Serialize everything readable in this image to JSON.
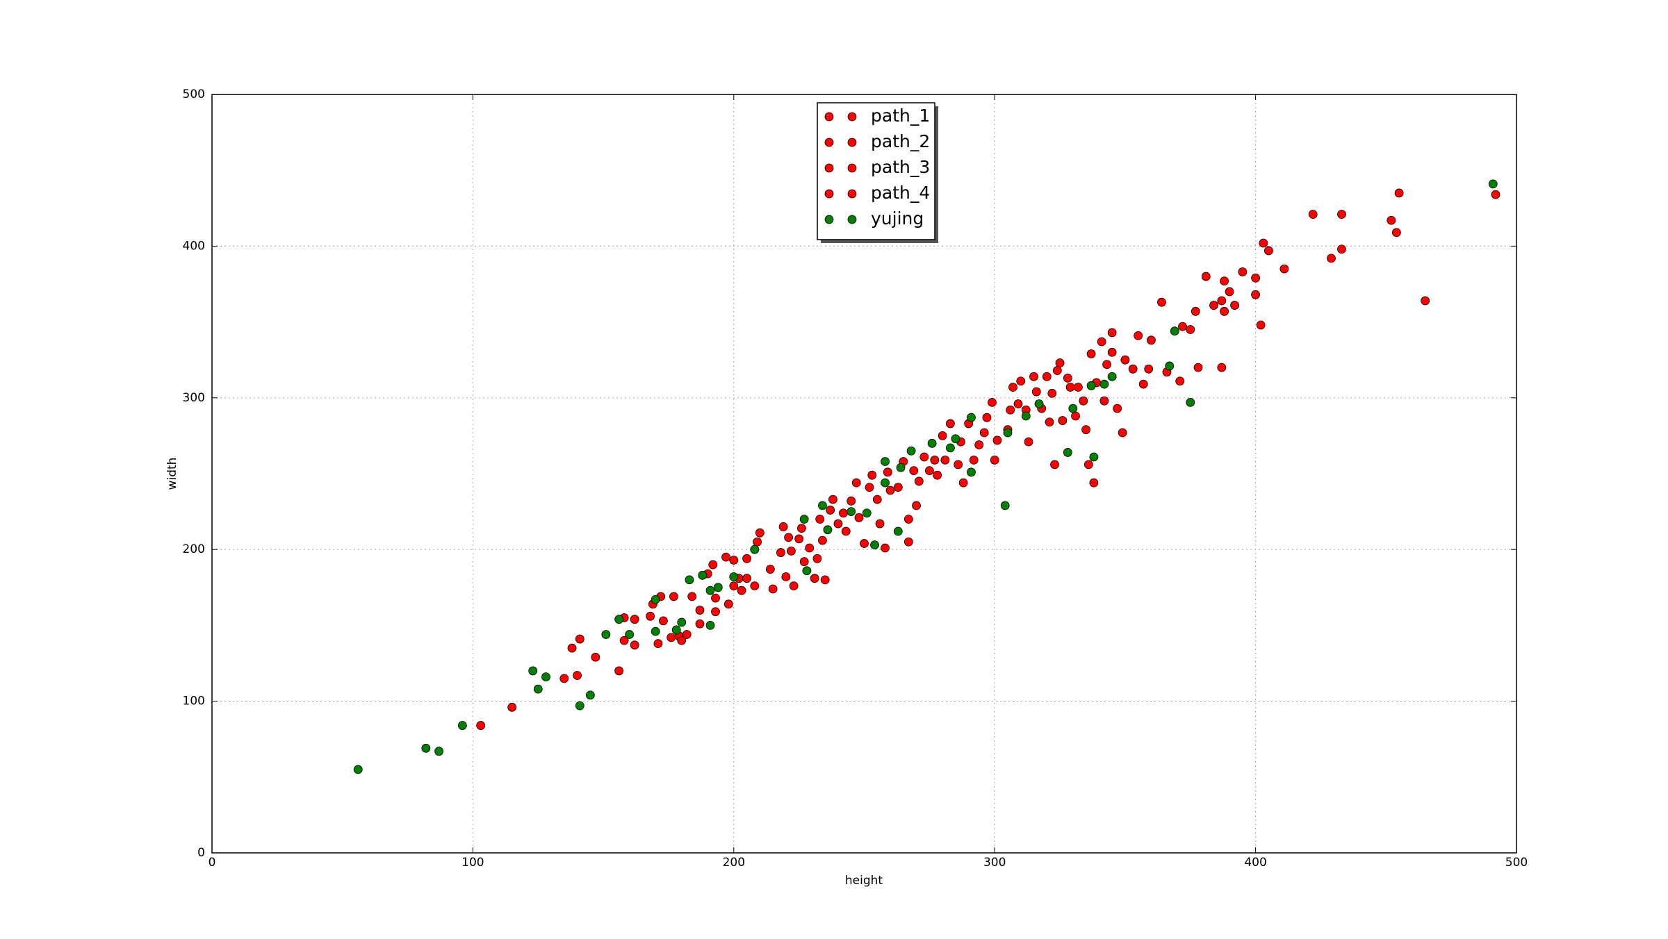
{
  "chart_data": {
    "type": "scatter",
    "x_label": "height",
    "y_label": "width",
    "xlim": [
      0,
      500
    ],
    "ylim": [
      0,
      500
    ],
    "xticks": [
      0,
      100,
      200,
      300,
      400,
      500
    ],
    "yticks": [
      0,
      100,
      200,
      300,
      400,
      500
    ],
    "grid": true,
    "legend": "upper center",
    "series": [
      {
        "name": "path_1",
        "color": "#ff0000",
        "x": [
          103,
          115,
          135,
          138,
          140,
          141,
          147,
          156,
          158,
          158,
          162,
          162,
          168,
          169,
          171,
          172,
          173,
          176,
          177,
          179,
          180,
          182,
          184,
          187,
          187,
          190,
          192,
          193,
          193,
          197,
          198,
          200,
          200,
          202,
          203,
          205,
          205,
          208,
          209,
          210
        ],
        "values": [
          84,
          96,
          115,
          135,
          117,
          141,
          129,
          120,
          155,
          140,
          137,
          154,
          156,
          164,
          138,
          169,
          153,
          142,
          169,
          143,
          140,
          144,
          169,
          160,
          151,
          184,
          190,
          159,
          168,
          195,
          164,
          176,
          193,
          181,
          173,
          194,
          181,
          176,
          205,
          211
        ]
      },
      {
        "name": "path_2",
        "color": "#ff0000",
        "x": [
          214,
          215,
          218,
          219,
          220,
          221,
          222,
          223,
          225,
          226,
          227,
          229,
          231,
          232,
          233,
          234,
          235,
          237,
          238,
          240,
          242,
          243,
          245,
          247,
          248,
          250,
          252,
          253,
          255,
          256,
          258,
          259,
          260,
          263,
          265,
          267,
          267,
          269,
          270,
          271
        ],
        "values": [
          187,
          174,
          198,
          215,
          182,
          208,
          199,
          176,
          207,
          214,
          192,
          201,
          181,
          194,
          220,
          206,
          180,
          226,
          233,
          217,
          224,
          212,
          232,
          244,
          221,
          204,
          241,
          249,
          233,
          217,
          201,
          251,
          239,
          241,
          258,
          220,
          205,
          252,
          229,
          245
        ]
      },
      {
        "name": "path_3",
        "color": "#ff0000",
        "x": [
          273,
          275,
          277,
          278,
          280,
          281,
          283,
          286,
          287,
          288,
          290,
          292,
          294,
          296,
          297,
          299,
          300,
          301,
          305,
          306,
          307,
          309,
          310,
          312,
          313,
          315,
          316,
          318,
          320,
          321,
          322,
          323,
          324,
          325,
          326,
          328,
          329,
          331,
          332,
          334
        ],
        "values": [
          261,
          252,
          259,
          249,
          275,
          259,
          283,
          256,
          271,
          244,
          283,
          259,
          269,
          277,
          287,
          297,
          259,
          272,
          279,
          292,
          307,
          296,
          311,
          292,
          271,
          314,
          304,
          293,
          314,
          284,
          303,
          256,
          318,
          323,
          285,
          313,
          307,
          288,
          307,
          298
        ]
      },
      {
        "name": "path_4",
        "color": "#ff0000",
        "x": [
          335,
          336,
          337,
          338,
          339,
          341,
          342,
          343,
          345,
          345,
          347,
          349,
          350,
          353,
          355,
          357,
          359,
          360,
          364,
          366,
          371,
          372,
          375,
          377,
          378,
          381,
          384,
          387,
          387,
          388,
          388,
          390,
          392,
          395,
          400,
          400,
          402,
          403,
          405,
          411,
          422,
          429,
          433,
          433,
          452,
          454,
          455,
          465,
          492
        ],
        "values": [
          279,
          256,
          329,
          244,
          310,
          337,
          298,
          322,
          330,
          343,
          293,
          277,
          325,
          319,
          341,
          309,
          319,
          338,
          363,
          317,
          311,
          347,
          345,
          357,
          320,
          380,
          361,
          320,
          364,
          377,
          357,
          370,
          361,
          383,
          379,
          368,
          348,
          402,
          397,
          385,
          421,
          392,
          421,
          398,
          417,
          409,
          435,
          364,
          434
        ]
      },
      {
        "name": "yujing",
        "color": "#008000",
        "x": [
          56,
          82,
          87,
          96,
          123,
          125,
          128,
          141,
          145,
          151,
          156,
          160,
          170,
          170,
          178,
          180,
          183,
          188,
          191,
          191,
          194,
          200,
          208,
          227,
          228,
          234,
          236,
          245,
          251,
          254,
          258,
          258,
          263,
          264,
          268,
          276,
          283,
          285,
          291,
          291,
          304,
          305,
          312,
          317,
          330,
          337,
          338,
          342,
          345,
          369,
          367,
          375,
          491,
          328
        ],
        "values": [
          55,
          69,
          67,
          84,
          120,
          108,
          116,
          97,
          104,
          144,
          154,
          144,
          146,
          167,
          147,
          152,
          180,
          183,
          173,
          150,
          175,
          182,
          200,
          220,
          186,
          229,
          213,
          225,
          224,
          203,
          258,
          244,
          212,
          254,
          265,
          270,
          267,
          273,
          251,
          287,
          229,
          277,
          288,
          296,
          293,
          308,
          261,
          309,
          314,
          344,
          321,
          297,
          441,
          264
        ]
      }
    ]
  }
}
